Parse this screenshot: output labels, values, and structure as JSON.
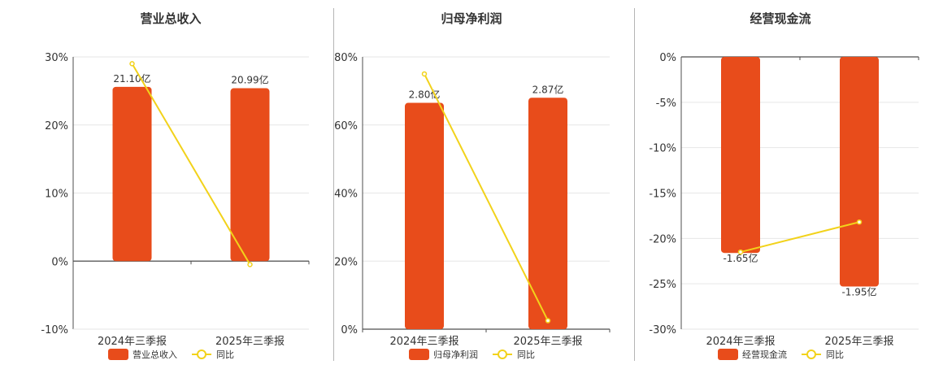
{
  "legend_yoy": "同比",
  "colors": {
    "bar": "#E84C1B",
    "line": "#F2D21B",
    "axis": "#4d4d4d",
    "grid": "#e6e6e6",
    "text": "#333333"
  },
  "chart_data": [
    {
      "type": "bar",
      "title": "营业总收入",
      "categories": [
        "2024年三季报",
        "2025年三季报"
      ],
      "legend": [
        "营业总收入",
        "同比"
      ],
      "y_ticks": [
        "30%",
        "20%",
        "10%",
        "0%",
        "-10%"
      ],
      "ylim": [
        -10,
        30
      ],
      "series": [
        {
          "name": "营业总收入",
          "values": [
            21.1,
            20.99
          ],
          "labels": [
            "21.10亿",
            "20.99亿"
          ],
          "bar_pct": [
            25.6,
            25.4
          ]
        },
        {
          "name": "同比",
          "kind": "line",
          "values": [
            29.0,
            -0.5
          ]
        }
      ]
    },
    {
      "type": "bar",
      "title": "归母净利润",
      "categories": [
        "2024年三季报",
        "2025年三季报"
      ],
      "legend": [
        "归母净利润",
        "同比"
      ],
      "y_ticks": [
        "80%",
        "60%",
        "40%",
        "20%",
        "0%"
      ],
      "ylim": [
        0,
        80
      ],
      "series": [
        {
          "name": "归母净利润",
          "values": [
            2.8,
            2.87
          ],
          "labels": [
            "2.80亿",
            "2.87亿"
          ],
          "bar_pct": [
            66.5,
            68.0
          ]
        },
        {
          "name": "同比",
          "kind": "line",
          "values": [
            75.0,
            2.5
          ]
        }
      ]
    },
    {
      "type": "bar",
      "title": "经营现金流",
      "categories": [
        "2024年三季报",
        "2025年三季报"
      ],
      "legend": [
        "经营现金流",
        "同比"
      ],
      "y_ticks": [
        "0%",
        "-5%",
        "-10%",
        "-15%",
        "-20%",
        "-25%",
        "-30%"
      ],
      "ylim": [
        -30,
        0
      ],
      "series": [
        {
          "name": "经营现金流",
          "values": [
            -1.65,
            -1.95
          ],
          "labels": [
            "-1.65亿",
            "-1.95亿"
          ],
          "bar_pct": [
            -21.6,
            -25.3
          ]
        },
        {
          "name": "同比",
          "kind": "line",
          "values": [
            -21.5,
            -18.2
          ]
        }
      ]
    }
  ]
}
